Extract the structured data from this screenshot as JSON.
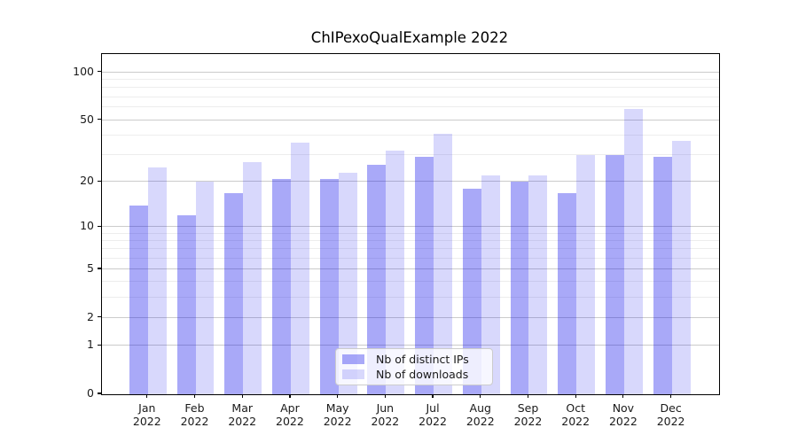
{
  "chart_data": {
    "type": "bar",
    "title": "ChIPexoQualExample 2022",
    "categories": [
      "Jan",
      "Feb",
      "Mar",
      "Apr",
      "May",
      "Jun",
      "Jul",
      "Aug",
      "Sep",
      "Oct",
      "Nov",
      "Dec"
    ],
    "x_tick_year": "2022",
    "series": [
      {
        "name": "Nb of distinct IPs",
        "values": [
          14,
          12,
          17,
          21,
          21,
          26,
          29,
          18,
          20,
          17,
          30,
          29
        ],
        "color": "rgba(10,10,235,0.35)"
      },
      {
        "name": "Nb of downloads",
        "values": [
          25,
          20,
          27,
          36,
          23,
          32,
          41,
          22,
          22,
          30,
          59,
          37
        ],
        "color": "rgba(10,10,235,0.16)"
      }
    ],
    "yscale": "log1p",
    "ylim": [
      0,
      130
    ],
    "yticks": [
      100,
      50,
      20,
      10,
      5,
      2,
      1,
      0
    ],
    "yticks_minor": [
      3,
      4,
      6,
      7,
      8,
      9,
      30,
      40,
      60,
      70,
      80,
      90
    ],
    "grid": "horizontal",
    "legend_position": "lower center inside"
  },
  "styles": {
    "background_color": "#ffffff",
    "spine_color": "#000000",
    "text_color": "#1a1a1a",
    "grid_major_color": "#cbcbcb",
    "grid_minor_color": "#ededed",
    "legend_border_color": "#cccccc",
    "legend_bg_color": "rgba(255,255,255,0.8)"
  }
}
